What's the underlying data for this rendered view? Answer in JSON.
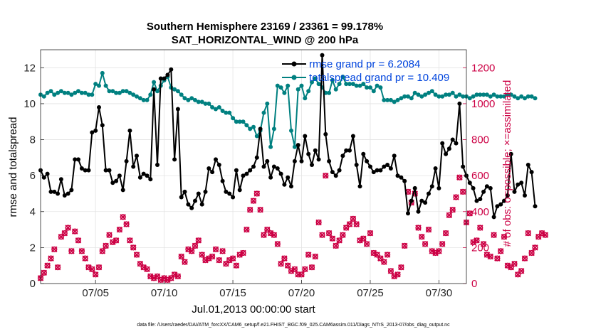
{
  "chart_data": {
    "type": "line",
    "title": "Southern Hemisphere 23169 / 23361 = 99.178%",
    "subtitle": "SAT_HORIZONTAL_WIND @ 200 hPa",
    "xlabel": "Jul.01,2013 00:00:00 start",
    "ylabel": "rmse and totalspread",
    "ylabel_right": "# of obs: o=possible; ×=assimilated",
    "xlim": [
      1,
      32
    ],
    "ylim": [
      0,
      13
    ],
    "ylim_right": [
      0,
      1300
    ],
    "x_ticks": [
      5,
      10,
      15,
      20,
      25,
      30
    ],
    "x_tick_labels": [
      "07/05",
      "07/10",
      "07/15",
      "07/20",
      "07/25",
      "07/30"
    ],
    "y_ticks": [
      0,
      2,
      4,
      6,
      8,
      10,
      12
    ],
    "y_tick_labels": [
      "0",
      "2",
      "4",
      "6",
      "8",
      "10",
      "12"
    ],
    "y_right_ticks": [
      0,
      200,
      400,
      600,
      800,
      1000,
      1200
    ],
    "y_right_tick_labels": [
      "0",
      "200",
      "400",
      "600",
      "800",
      "1000",
      "1200"
    ],
    "grid": true,
    "legend_position": "top-right",
    "series": [
      {
        "name": "rmse grand pr = 6.2084",
        "color": "#000000",
        "axis": "left",
        "marker": "filled-circle",
        "values": [
          6.3,
          5.9,
          6.1,
          5.1,
          5.1,
          5.0,
          5.8,
          4.9,
          5.0,
          5.2,
          6.9,
          6.9,
          6.4,
          6.3,
          6.3,
          8.4,
          8.5,
          9.8,
          8.8,
          6.3,
          6.3,
          5.6,
          5.7,
          6.0,
          5.2,
          6.8,
          8.5,
          6.5,
          7.1,
          5.9,
          6.1,
          6.0,
          5.8,
          10.8,
          6.6,
          11.4,
          11.4,
          11.6,
          11.9,
          6.9,
          9.7,
          4.8,
          5.1,
          4.4,
          4.2,
          4.6,
          5.0,
          4.4,
          5.1,
          6.4,
          6.2,
          6.9,
          6.6,
          5.7,
          5.1,
          5.0,
          4.8,
          6.3,
          5.2,
          6.0,
          6.1,
          6.3,
          6.5,
          7.0,
          8.6,
          6.5,
          6.8,
          5.9,
          6.5,
          6.4,
          6.1,
          5.5,
          5.9,
          5.4,
          6.8,
          7.7,
          6.8,
          8.2,
          7.2,
          6.6,
          7.4,
          6.9,
          12.7,
          8.3,
          6.8,
          6.2,
          6.0,
          6.3,
          7.1,
          7.4,
          7.4,
          8.2,
          6.6,
          5.4,
          7.2,
          6.8,
          6.5,
          6.2,
          6.3,
          6.3,
          6.5,
          6.6,
          6.4,
          7.1,
          6.0,
          5.9,
          5.7,
          3.9,
          4.6,
          5.3,
          4.0,
          4.6,
          4.5,
          5.0,
          5.4,
          6.4,
          5.3,
          7.8,
          7.2,
          7.5,
          8.0,
          7.8,
          10.0,
          6.5,
          6.0,
          5.6,
          5.3,
          4.6,
          4.7,
          5.1,
          5.4,
          5.3,
          3.7,
          4.3,
          4.4,
          4.6,
          4.9,
          7.2,
          5.1,
          5.5,
          5.6,
          4.9,
          6.6,
          6.2,
          4.3
        ]
      },
      {
        "name": "totalspread grand pr = 10.409",
        "color": "#008080",
        "axis": "left",
        "marker": "filled-circle",
        "values": [
          10.5,
          10.4,
          10.6,
          10.7,
          10.5,
          10.6,
          10.7,
          10.6,
          10.6,
          10.5,
          10.6,
          10.7,
          10.6,
          10.6,
          10.5,
          10.5,
          11.1,
          11.0,
          11.7,
          11.0,
          10.7,
          10.7,
          10.6,
          10.6,
          10.7,
          10.7,
          10.6,
          10.5,
          10.4,
          10.3,
          10.2,
          10.2,
          10.5,
          11.2,
          10.7,
          11.0,
          11.3,
          11.5,
          10.9,
          10.8,
          10.7,
          10.5,
          10.3,
          10.2,
          10.3,
          10.2,
          10.1,
          10.1,
          10.0,
          10.0,
          9.8,
          9.7,
          9.8,
          9.6,
          9.5,
          9.5,
          9.2,
          9.0,
          9.0,
          9.0,
          8.8,
          8.6,
          8.7,
          8.2,
          8.5,
          9.5,
          10.0,
          7.6,
          8.6,
          11.0,
          10.9,
          10.6,
          11.0,
          8.5,
          7.6,
          10.8,
          11.0,
          10.3,
          10.7,
          11.2,
          11.4,
          11.1,
          10.9,
          10.6,
          10.6,
          11.3,
          10.8,
          11.1,
          11.5,
          11.1,
          11.1,
          11.1,
          11.0,
          11.0,
          11.1,
          10.9,
          10.9,
          10.7,
          11.0,
          10.9,
          10.2,
          10.2,
          10.2,
          10.1,
          10.2,
          10.3,
          10.4,
          10.4,
          10.3,
          10.6,
          10.5,
          10.4,
          10.5,
          10.6,
          10.7,
          10.5,
          10.4,
          10.4,
          10.5,
          10.5,
          10.6,
          10.4,
          10.5,
          10.4,
          10.4,
          10.3,
          10.4,
          10.5,
          10.5,
          10.5,
          10.5,
          10.4,
          10.5,
          10.4,
          10.4,
          10.4,
          10.5,
          10.5,
          10.4,
          10.3,
          10.4,
          10.3,
          10.4,
          10.4,
          10.3
        ]
      },
      {
        "name": "possible",
        "color": "#cc0044",
        "axis": "right",
        "marker": "open-circle",
        "values": [
          30,
          60,
          100,
          140,
          190,
          90,
          260,
          280,
          310,
          180,
          290,
          240,
          180,
          140,
          90,
          80,
          50,
          90,
          180,
          210,
          270,
          230,
          240,
          300,
          370,
          330,
          240,
          200,
          160,
          110,
          90,
          80,
          40,
          30,
          40,
          20,
          30,
          20,
          30,
          50,
          40,
          150,
          120,
          190,
          180,
          210,
          240,
          160,
          130,
          140,
          150,
          190,
          130,
          180,
          110,
          130,
          140,
          100,
          160,
          170,
          300,
          410,
          460,
          500,
          410,
          270,
          300,
          280,
          270,
          220,
          110,
          140,
          100,
          70,
          80,
          50,
          50,
          80,
          160,
          90,
          150,
          340,
          270,
          600,
          280,
          250,
          210,
          240,
          270,
          310,
          330,
          360,
          330,
          240,
          250,
          220,
          280,
          170,
          160,
          140,
          120,
          160,
          70,
          40,
          50,
          90,
          210,
          510,
          450,
          500,
          310,
          260,
          220,
          300,
          180,
          170,
          180,
          220,
          280,
          380,
          410,
          480,
          590,
          510,
          340,
          390,
          230,
          240,
          310,
          220,
          160,
          150,
          270,
          140,
          180,
          260,
          100,
          90,
          110,
          50,
          70,
          140,
          280,
          170,
          200,
          260,
          280,
          270
        ]
      },
      {
        "name": "assimilated",
        "color": "#cc0044",
        "axis": "right",
        "marker": "cross",
        "values": [
          30,
          60,
          100,
          140,
          190,
          90,
          260,
          280,
          310,
          180,
          290,
          240,
          180,
          140,
          90,
          80,
          50,
          90,
          180,
          210,
          270,
          230,
          240,
          300,
          370,
          330,
          240,
          200,
          160,
          110,
          90,
          80,
          40,
          30,
          40,
          20,
          30,
          20,
          30,
          50,
          40,
          150,
          120,
          190,
          180,
          210,
          240,
          160,
          130,
          140,
          150,
          190,
          130,
          180,
          110,
          130,
          140,
          100,
          160,
          170,
          300,
          410,
          460,
          500,
          410,
          270,
          300,
          280,
          270,
          220,
          110,
          140,
          100,
          70,
          80,
          50,
          50,
          80,
          160,
          90,
          150,
          340,
          270,
          600,
          280,
          250,
          210,
          240,
          270,
          310,
          330,
          360,
          330,
          240,
          250,
          220,
          280,
          170,
          160,
          140,
          120,
          160,
          70,
          40,
          50,
          90,
          210,
          510,
          450,
          500,
          310,
          260,
          220,
          300,
          180,
          170,
          180,
          220,
          280,
          380,
          410,
          480,
          590,
          510,
          340,
          390,
          230,
          240,
          310,
          220,
          160,
          150,
          270,
          140,
          180,
          260,
          100,
          90,
          110,
          50,
          70,
          140,
          280,
          170,
          200,
          260,
          280,
          270
        ]
      }
    ],
    "footer_note": "data file: /Users/raeder/DAI/ATM_forcXX/CAM6_setup/f.e21.FHIST_BGC.f09_025.CAM6assim.011/Diags_NTrS_2013-07/obs_diag_output.nc"
  }
}
